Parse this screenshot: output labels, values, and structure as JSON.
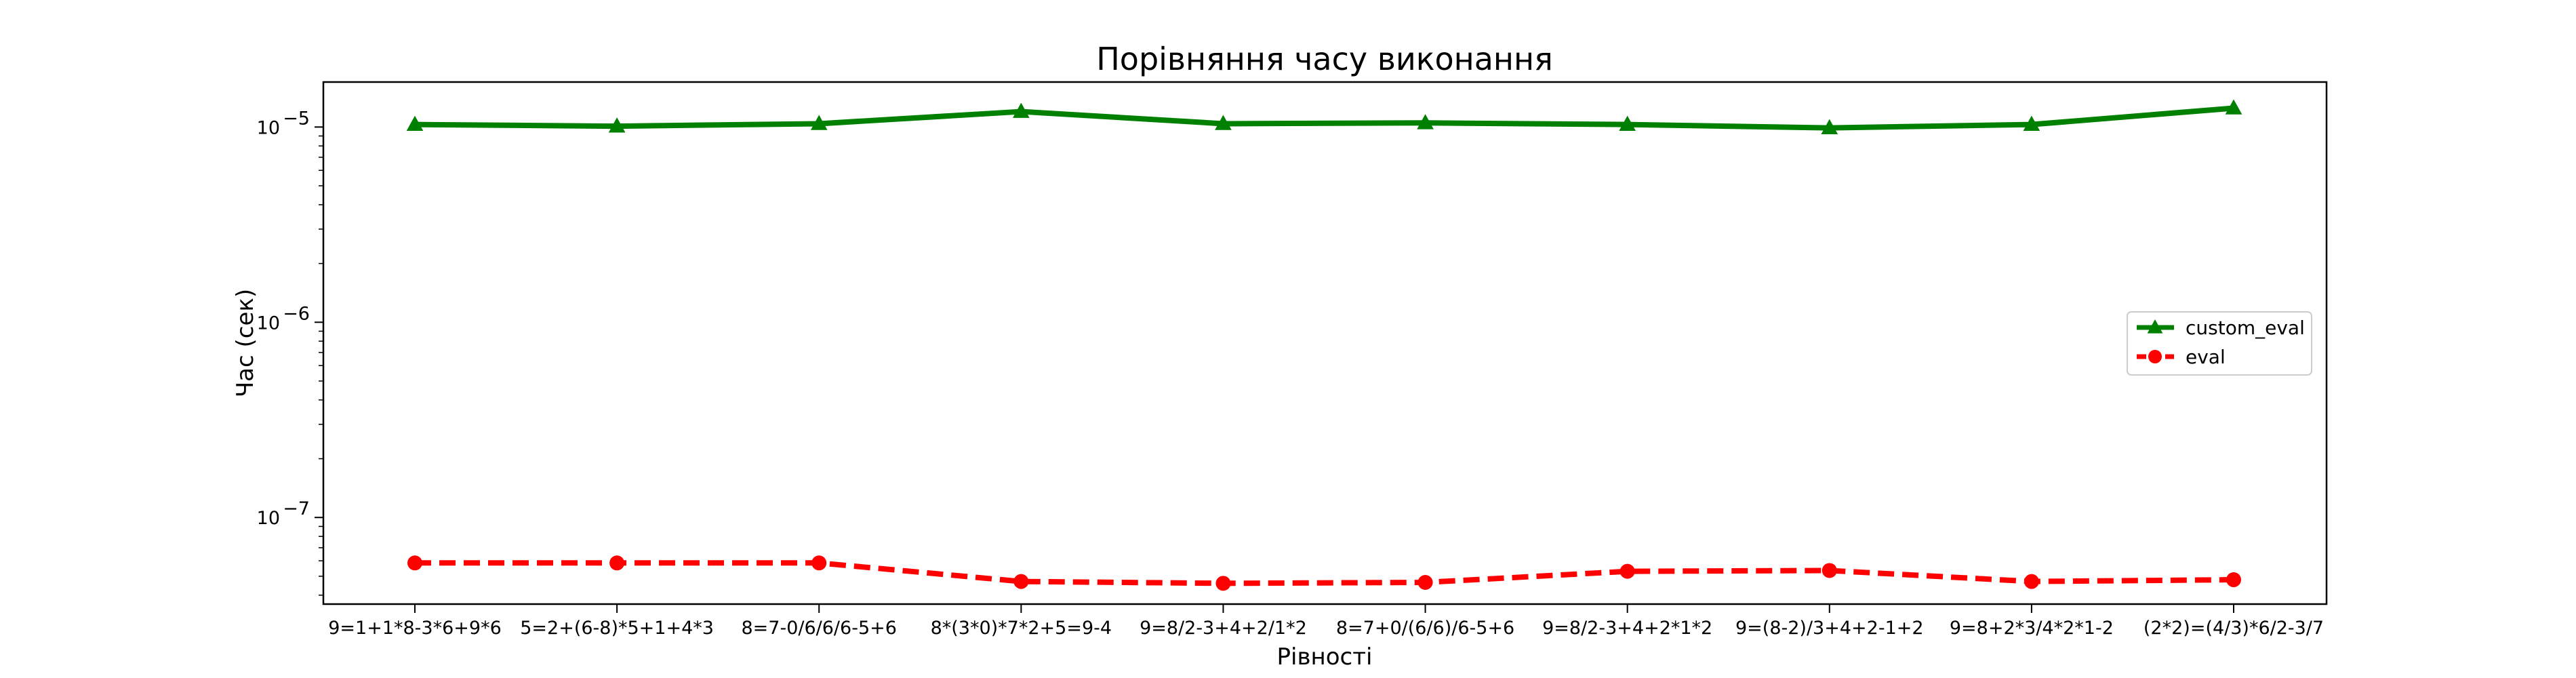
{
  "chart_data": {
    "type": "line",
    "title": "Порівняння часу виконання",
    "xlabel": "Рівності",
    "ylabel": "Час (сек)",
    "yscale": "log",
    "ylim": [
      3.6e-08,
      1.7e-05
    ],
    "yticks": [
      {
        "value": 1e-07,
        "base": "10",
        "exp": "−7"
      },
      {
        "value": 1e-06,
        "base": "10",
        "exp": "−6"
      },
      {
        "value": 1e-05,
        "base": "10",
        "exp": "−5"
      }
    ],
    "categories": [
      "9=1+1*8-3*6+9*6",
      "5=2+(6-8)*5+1+4*3",
      "8=7-0/6/6/6-5+6",
      "8*(3*0)*7*2+5=9-4",
      "9=8/2-3+4+2/1*2",
      "8=7+0/(6/6)/6-5+6",
      "9=8/2-3+4+2*1*2",
      "9=(8-2)/3+4+2-1+2",
      "9=8+2*3/4*2*1-2",
      "(2*2)=(4/3)*6/2-3/7"
    ],
    "series": [
      {
        "name": "custom_eval",
        "color": "#008000",
        "line_style": "solid",
        "marker": "triangle",
        "values": [
          1.03e-05,
          1.01e-05,
          1.04e-05,
          1.2e-05,
          1.04e-05,
          1.05e-05,
          1.03e-05,
          9.9e-06,
          1.03e-05,
          1.25e-05
        ]
      },
      {
        "name": "eval",
        "color": "#ff0000",
        "line_style": "dashed",
        "marker": "circle",
        "values": [
          5.85e-08,
          5.85e-08,
          5.85e-08,
          4.7e-08,
          4.6e-08,
          4.65e-08,
          5.3e-08,
          5.35e-08,
          4.7e-08,
          4.8e-08
        ]
      }
    ],
    "legend_position": "center-right",
    "grid": false
  }
}
